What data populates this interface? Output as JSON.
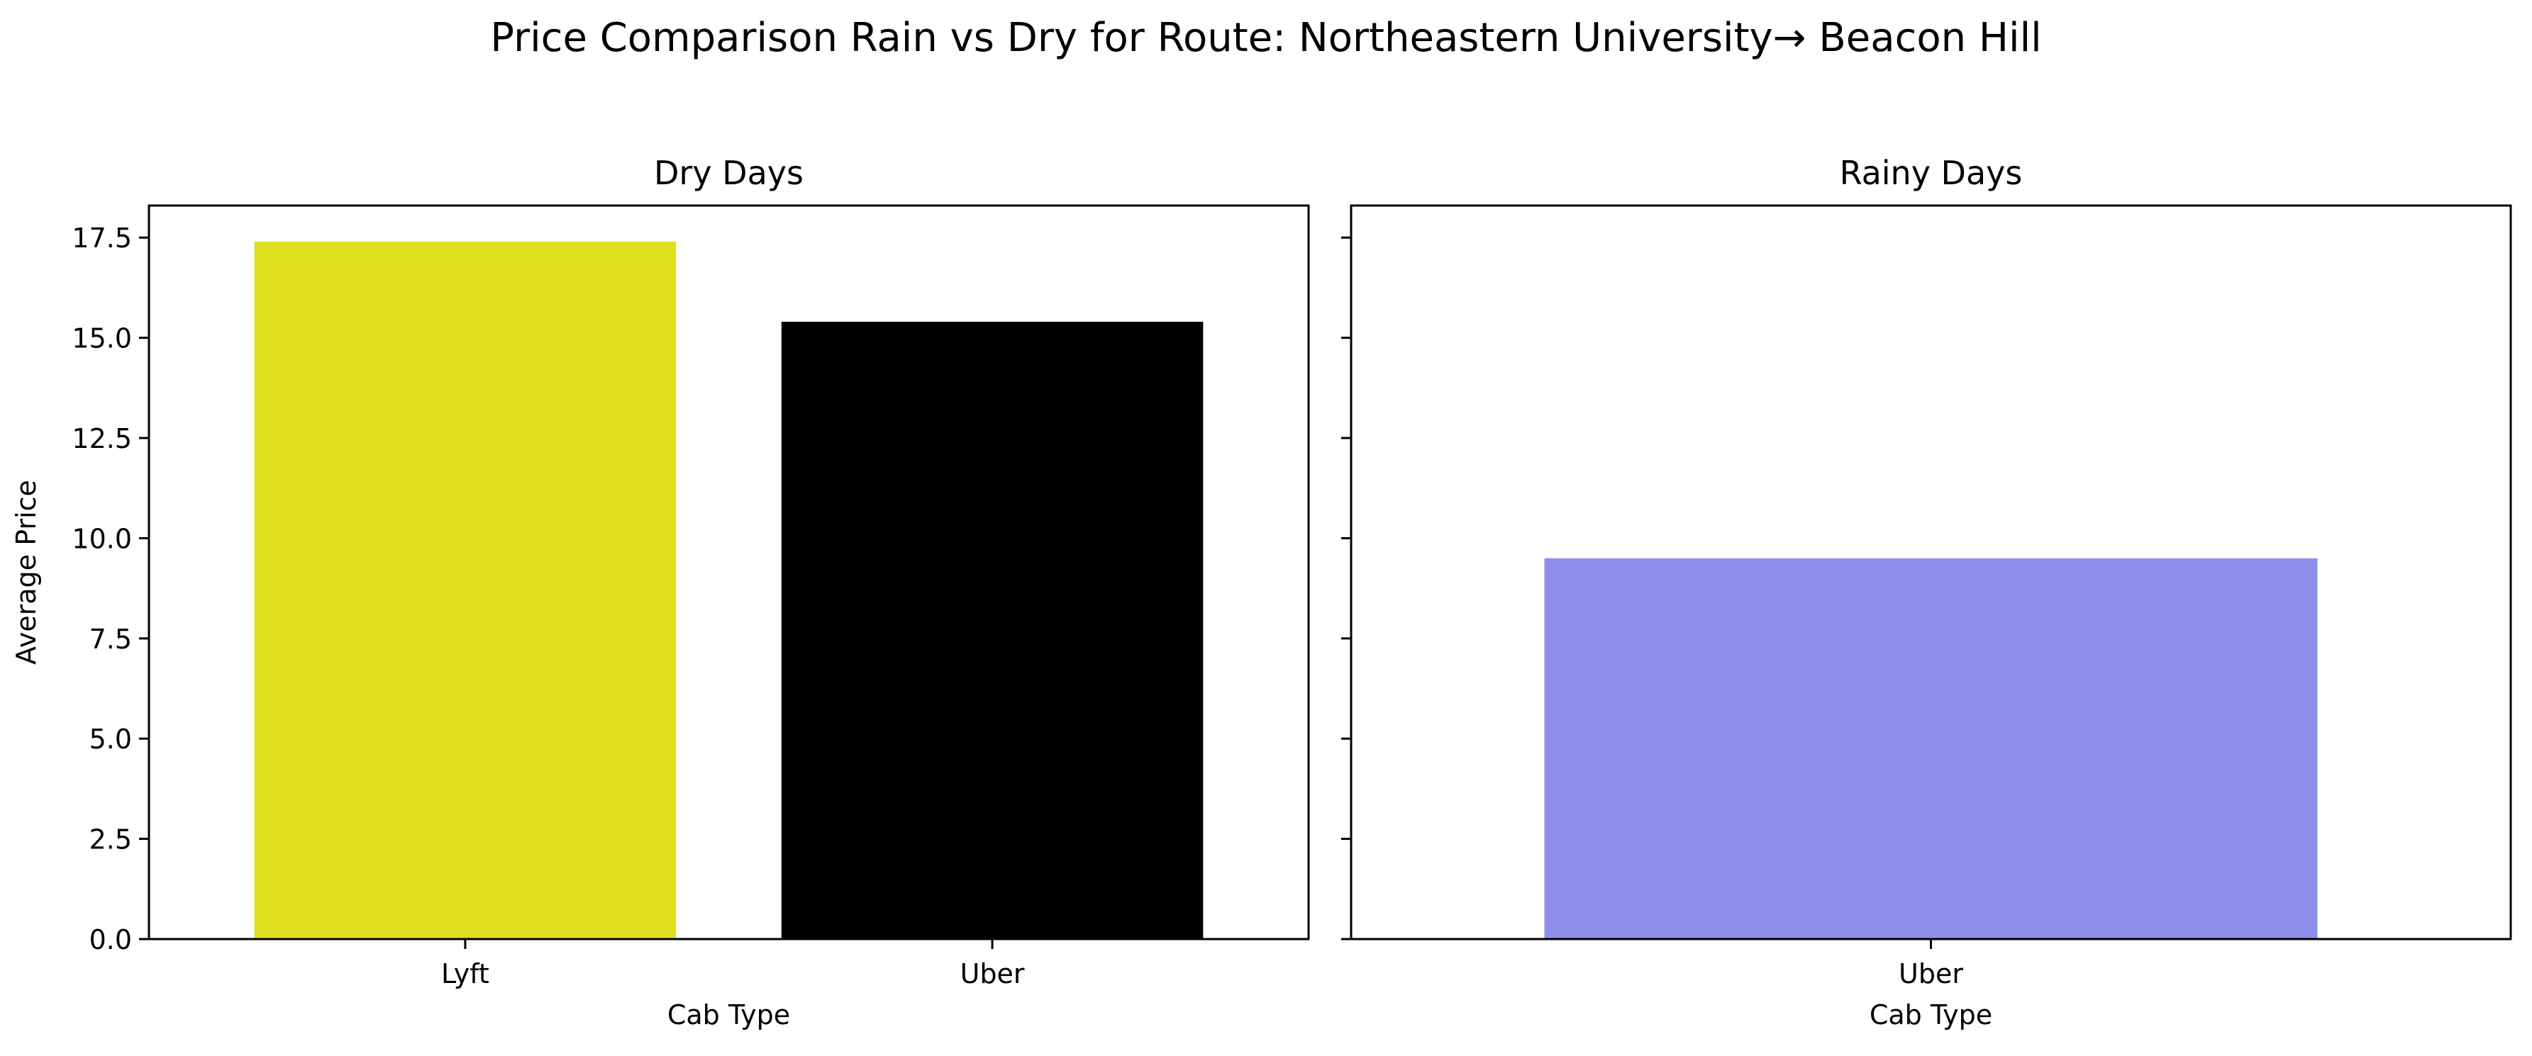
{
  "figure": {
    "title": "Price Comparison Rain vs Dry for Route: Northeastern University→ Beacon Hill"
  },
  "chart_data": [
    {
      "type": "bar",
      "title": "Dry Days",
      "xlabel": "Cab Type",
      "ylabel": "Average Price",
      "ylim": [
        0,
        18.3
      ],
      "yticks": [
        0.0,
        2.5,
        5.0,
        7.5,
        10.0,
        12.5,
        15.0,
        17.5
      ],
      "ytick_labels": [
        "0.0",
        "2.5",
        "5.0",
        "7.5",
        "10.0",
        "12.5",
        "15.0",
        "17.5"
      ],
      "categories": [
        "Lyft",
        "Uber"
      ],
      "values": [
        17.4,
        15.4
      ],
      "colors": [
        "#dfdf20",
        "#000000"
      ],
      "grid": false
    },
    {
      "type": "bar",
      "title": "Rainy Days",
      "xlabel": "Cab Type",
      "ylabel": "",
      "ylim": [
        0,
        18.3
      ],
      "yticks": [
        0.0,
        2.5,
        5.0,
        7.5,
        10.0,
        12.5,
        15.0,
        17.5
      ],
      "ytick_labels": [],
      "categories": [
        "Uber"
      ],
      "values": [
        9.5
      ],
      "colors": [
        "#8f8fec"
      ],
      "grid": false
    }
  ]
}
